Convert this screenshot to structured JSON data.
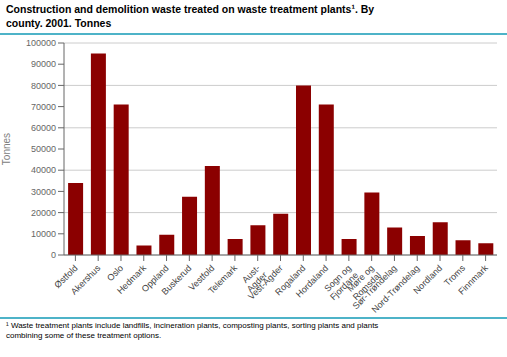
{
  "chart_data": {
    "type": "bar",
    "title": "Construction and demolition waste treated on waste treatment plants¹. By\ncounty. 2001. Tonnes",
    "ylabel": "Tonnes",
    "annotations": [
      "¹ Waste treatment plants include landfills, incineration plants, composting plants, sorting plants and plants\ncombining some of these treatment options."
    ],
    "categories": [
      "Østfold",
      "Akershus",
      "Oslo",
      "Hedmark",
      "Oppland",
      "Buskerud",
      "Vestfold",
      "Telemark",
      "Aust-\nAgder",
      "Vest-Agder",
      "Rogaland",
      "Hordaland",
      "Sogn og\nFjordane",
      "Møre og\nRomsdal",
      "Sør-Trøndelag",
      "Nord-Trøndelag",
      "Nordland",
      "Troms",
      "Finnmark"
    ],
    "values": [
      34000,
      95000,
      71000,
      4500,
      9500,
      27500,
      42000,
      7500,
      14000,
      19500,
      80000,
      71000,
      7500,
      29500,
      13000,
      9000,
      15500,
      7000,
      5500
    ],
    "color": "#8B0000",
    "ylim": [
      0,
      100000
    ],
    "yticks": [
      0,
      10000,
      20000,
      30000,
      40000,
      50000,
      60000,
      70000,
      80000,
      90000,
      100000
    ],
    "grid": true
  }
}
